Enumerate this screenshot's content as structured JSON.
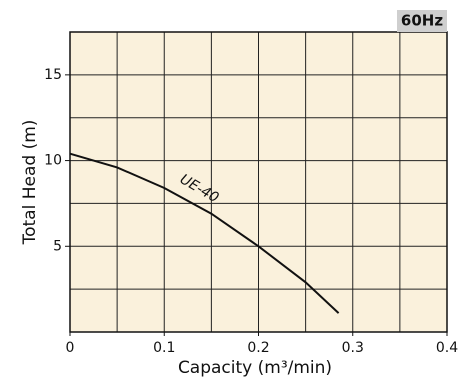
{
  "chart_data": {
    "type": "line",
    "xlabel": "Capacity (m³/min)",
    "ylabel": "Total Head (m)",
    "badge": "60Hz",
    "x": [
      0,
      0.05,
      0.1,
      0.15,
      0.2,
      0.25,
      0.285
    ],
    "series": [
      {
        "name": "UE-40",
        "color": "#111111",
        "values": [
          10.4,
          9.6,
          8.4,
          6.9,
          5.0,
          2.9,
          1.1
        ]
      }
    ],
    "xlim": [
      0,
      0.4
    ],
    "xticks": [
      0,
      0.1,
      0.2,
      0.3,
      0.4
    ],
    "ylim": [
      0,
      17.5
    ],
    "yticks": [
      5,
      10,
      15
    ],
    "grid": true,
    "x_grid_step": 0.05,
    "y_grid_step": 2.5,
    "background": "#faf1dc"
  }
}
